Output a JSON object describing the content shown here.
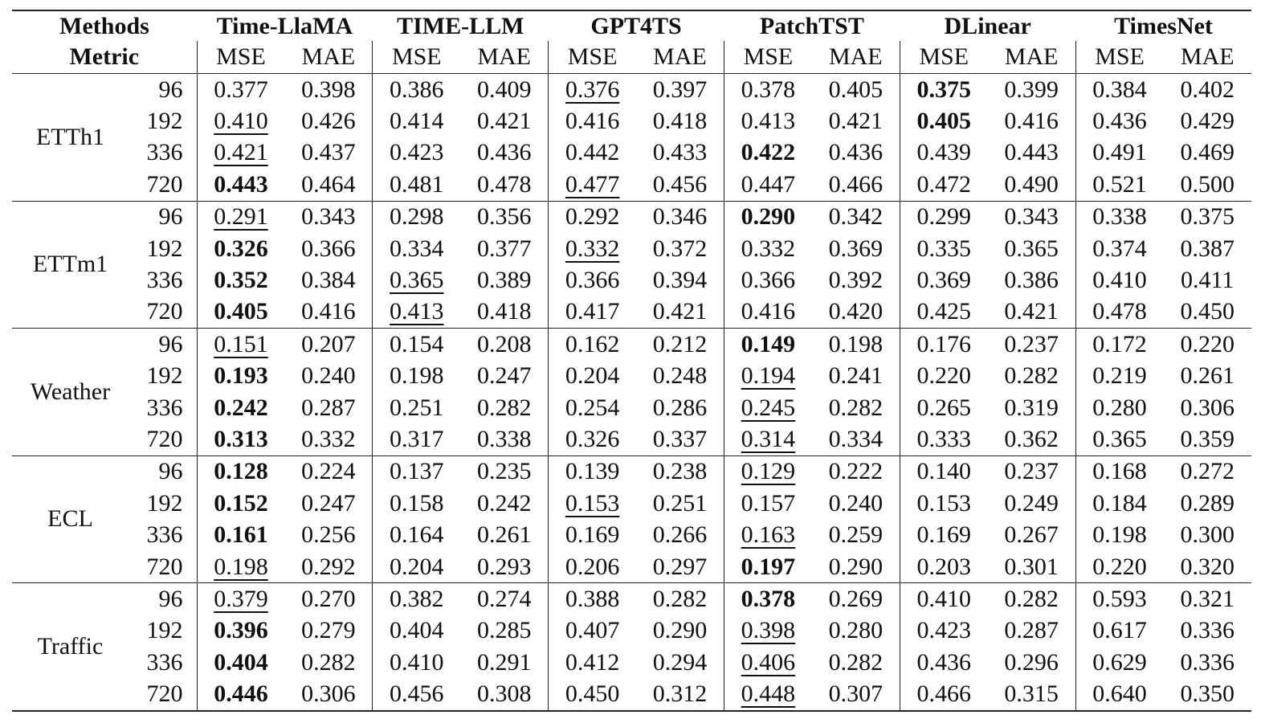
{
  "header": {
    "methods_label": "Methods",
    "metric_label": "Metric",
    "methods": [
      "Time-LlaMA",
      "TIME-LLM",
      "GPT4TS",
      "PatchTST",
      "DLinear",
      "TimesNet"
    ],
    "metrics": [
      "MSE",
      "MAE"
    ]
  },
  "groups": [
    {
      "dataset": "ETTh1",
      "rows": [
        {
          "horizon": "96",
          "values": [
            "0.377",
            "0.398",
            "0.386",
            "0.409",
            "0.376",
            "0.397",
            "0.378",
            "0.405",
            "0.375",
            "0.399",
            "0.384",
            "0.402"
          ],
          "bold": [
            8
          ],
          "underline": [
            4
          ]
        },
        {
          "horizon": "192",
          "values": [
            "0.410",
            "0.426",
            "0.414",
            "0.421",
            "0.416",
            "0.418",
            "0.413",
            "0.421",
            "0.405",
            "0.416",
            "0.436",
            "0.429"
          ],
          "bold": [
            8
          ],
          "underline": [
            0
          ]
        },
        {
          "horizon": "336",
          "values": [
            "0.421",
            "0.437",
            "0.423",
            "0.436",
            "0.442",
            "0.433",
            "0.422",
            "0.436",
            "0.439",
            "0.443",
            "0.491",
            "0.469"
          ],
          "bold": [
            6
          ],
          "underline": [
            0
          ]
        },
        {
          "horizon": "720",
          "values": [
            "0.443",
            "0.464",
            "0.481",
            "0.478",
            "0.477",
            "0.456",
            "0.447",
            "0.466",
            "0.472",
            "0.490",
            "0.521",
            "0.500"
          ],
          "bold": [
            0
          ],
          "underline": [
            4
          ]
        }
      ]
    },
    {
      "dataset": "ETTm1",
      "rows": [
        {
          "horizon": "96",
          "values": [
            "0.291",
            "0.343",
            "0.298",
            "0.356",
            "0.292",
            "0.346",
            "0.290",
            "0.342",
            "0.299",
            "0.343",
            "0.338",
            "0.375"
          ],
          "bold": [
            6
          ],
          "underline": [
            0
          ]
        },
        {
          "horizon": "192",
          "values": [
            "0.326",
            "0.366",
            "0.334",
            "0.377",
            "0.332",
            "0.372",
            "0.332",
            "0.369",
            "0.335",
            "0.365",
            "0.374",
            "0.387"
          ],
          "bold": [
            0
          ],
          "underline": [
            4
          ]
        },
        {
          "horizon": "336",
          "values": [
            "0.352",
            "0.384",
            "0.365",
            "0.389",
            "0.366",
            "0.394",
            "0.366",
            "0.392",
            "0.369",
            "0.386",
            "0.410",
            "0.411"
          ],
          "bold": [
            0
          ],
          "underline": [
            2
          ]
        },
        {
          "horizon": "720",
          "values": [
            "0.405",
            "0.416",
            "0.413",
            "0.418",
            "0.417",
            "0.421",
            "0.416",
            "0.420",
            "0.425",
            "0.421",
            "0.478",
            "0.450"
          ],
          "bold": [
            0
          ],
          "underline": [
            2
          ]
        }
      ]
    },
    {
      "dataset": "Weather",
      "rows": [
        {
          "horizon": "96",
          "values": [
            "0.151",
            "0.207",
            "0.154",
            "0.208",
            "0.162",
            "0.212",
            "0.149",
            "0.198",
            "0.176",
            "0.237",
            "0.172",
            "0.220"
          ],
          "bold": [
            6
          ],
          "underline": [
            0
          ]
        },
        {
          "horizon": "192",
          "values": [
            "0.193",
            "0.240",
            "0.198",
            "0.247",
            "0.204",
            "0.248",
            "0.194",
            "0.241",
            "0.220",
            "0.282",
            "0.219",
            "0.261"
          ],
          "bold": [
            0
          ],
          "underline": [
            6
          ]
        },
        {
          "horizon": "336",
          "values": [
            "0.242",
            "0.287",
            "0.251",
            "0.282",
            "0.254",
            "0.286",
            "0.245",
            "0.282",
            "0.265",
            "0.319",
            "0.280",
            "0.306"
          ],
          "bold": [
            0
          ],
          "underline": [
            6
          ]
        },
        {
          "horizon": "720",
          "values": [
            "0.313",
            "0.332",
            "0.317",
            "0.338",
            "0.326",
            "0.337",
            "0.314",
            "0.334",
            "0.333",
            "0.362",
            "0.365",
            "0.359"
          ],
          "bold": [
            0
          ],
          "underline": [
            6
          ]
        }
      ]
    },
    {
      "dataset": "ECL",
      "rows": [
        {
          "horizon": "96",
          "values": [
            "0.128",
            "0.224",
            "0.137",
            "0.235",
            "0.139",
            "0.238",
            "0.129",
            "0.222",
            "0.140",
            "0.237",
            "0.168",
            "0.272"
          ],
          "bold": [
            0
          ],
          "underline": [
            6
          ]
        },
        {
          "horizon": "192",
          "values": [
            "0.152",
            "0.247",
            "0.158",
            "0.242",
            "0.153",
            "0.251",
            "0.157",
            "0.240",
            "0.153",
            "0.249",
            "0.184",
            "0.289"
          ],
          "bold": [
            0
          ],
          "underline": [
            4
          ]
        },
        {
          "horizon": "336",
          "values": [
            "0.161",
            "0.256",
            "0.164",
            "0.261",
            "0.169",
            "0.266",
            "0.163",
            "0.259",
            "0.169",
            "0.267",
            "0.198",
            "0.300"
          ],
          "bold": [
            0
          ],
          "underline": [
            6
          ]
        },
        {
          "horizon": "720",
          "values": [
            "0.198",
            "0.292",
            "0.204",
            "0.293",
            "0.206",
            "0.297",
            "0.197",
            "0.290",
            "0.203",
            "0.301",
            "0.220",
            "0.320"
          ],
          "bold": [
            6
          ],
          "underline": [
            0
          ]
        }
      ]
    },
    {
      "dataset": "Traffic",
      "rows": [
        {
          "horizon": "96",
          "values": [
            "0.379",
            "0.270",
            "0.382",
            "0.274",
            "0.388",
            "0.282",
            "0.378",
            "0.269",
            "0.410",
            "0.282",
            "0.593",
            "0.321"
          ],
          "bold": [
            6
          ],
          "underline": [
            0
          ]
        },
        {
          "horizon": "192",
          "values": [
            "0.396",
            "0.279",
            "0.404",
            "0.285",
            "0.407",
            "0.290",
            "0.398",
            "0.280",
            "0.423",
            "0.287",
            "0.617",
            "0.336"
          ],
          "bold": [
            0
          ],
          "underline": [
            6
          ]
        },
        {
          "horizon": "336",
          "values": [
            "0.404",
            "0.282",
            "0.410",
            "0.291",
            "0.412",
            "0.294",
            "0.406",
            "0.282",
            "0.436",
            "0.296",
            "0.629",
            "0.336"
          ],
          "bold": [
            0
          ],
          "underline": [
            6
          ]
        },
        {
          "horizon": "720",
          "values": [
            "0.446",
            "0.306",
            "0.456",
            "0.308",
            "0.450",
            "0.312",
            "0.448",
            "0.307",
            "0.466",
            "0.315",
            "0.640",
            "0.350"
          ],
          "bold": [
            0
          ],
          "underline": [
            6
          ]
        }
      ]
    }
  ]
}
